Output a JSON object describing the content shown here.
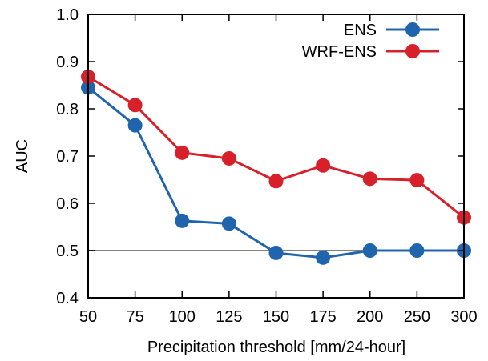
{
  "chart_data": {
    "type": "line",
    "title": "",
    "xlabel": "Precipitation threshold [mm/24-hour]",
    "ylabel": "AUC",
    "categories": [
      "50",
      "75",
      "100",
      "125",
      "150",
      "175",
      "200",
      "250",
      "300"
    ],
    "ylim": [
      0.4,
      1.0
    ],
    "yticks": [
      "0.4",
      "0.5",
      "0.6",
      "0.7",
      "0.8",
      "0.9",
      "1.0"
    ],
    "reference_line": 0.5,
    "legend_position": "top-right",
    "grid": false,
    "series": [
      {
        "name": "ENS",
        "color": "#1f64ad",
        "values": [
          0.845,
          0.765,
          0.563,
          0.557,
          0.495,
          0.485,
          0.5,
          0.5,
          0.5
        ]
      },
      {
        "name": "WRF-ENS",
        "color": "#d7202a",
        "values": [
          0.868,
          0.808,
          0.707,
          0.695,
          0.647,
          0.68,
          0.652,
          0.649,
          0.57
        ]
      }
    ]
  }
}
